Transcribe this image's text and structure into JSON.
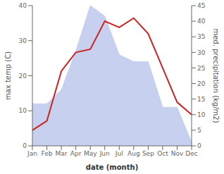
{
  "chart_data": {
    "type": "line",
    "xlabel": "date (month)",
    "ylabel": "max temp (C)",
    "y2label": "med. precipitation (kg/m2)",
    "categories": [
      "Jan",
      "Feb",
      "Mar",
      "Apr",
      "May",
      "Jun",
      "Jul",
      "Aug",
      "Sep",
      "Oct",
      "Nov",
      "Dec"
    ],
    "series": [
      {
        "type": "area",
        "color": "#c8d0f0",
        "axis": "y",
        "values": [
          12,
          12,
          16,
          27,
          40,
          37,
          26,
          24,
          24,
          11,
          11,
          1
        ]
      },
      {
        "type": "line",
        "color": "#cc2222",
        "axis": "y2",
        "values": [
          5,
          8,
          24,
          30,
          31,
          40,
          38,
          41,
          36,
          25,
          14,
          10
        ]
      }
    ],
    "ylim": [
      0,
      40
    ],
    "yticks": [
      0,
      10,
      20,
      30,
      40
    ],
    "y2lim": [
      0,
      45
    ],
    "y2ticks": [
      0,
      5,
      10,
      15,
      20,
      25,
      30,
      35,
      40,
      45
    ],
    "grid": false
  }
}
